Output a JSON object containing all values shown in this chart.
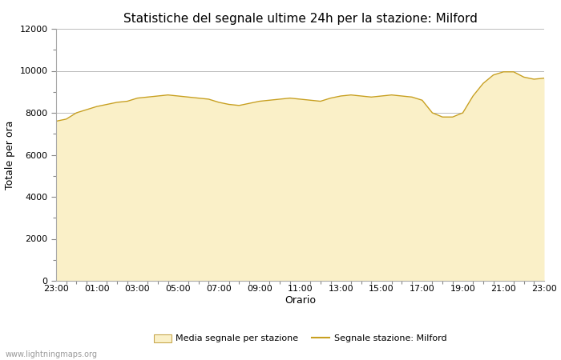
{
  "title": "Statistiche del segnale ultime 24h per la stazione: Milford",
  "xlabel": "Orario",
  "ylabel": "Totale per ora",
  "xlim": [
    0,
    24
  ],
  "ylim": [
    0,
    12000
  ],
  "yticks": [
    0,
    2000,
    4000,
    6000,
    8000,
    10000,
    12000
  ],
  "xtick_labels": [
    "23:00",
    "01:00",
    "03:00",
    "05:00",
    "07:00",
    "09:00",
    "11:00",
    "13:00",
    "15:00",
    "17:00",
    "19:00",
    "21:00",
    "23:00"
  ],
  "fill_color": "#FAF0C8",
  "fill_edge_color": "#C8A850",
  "line_color": "#C8A020",
  "bg_color": "#FFFFFF",
  "grid_color": "#BBBBBB",
  "watermark": "www.lightningmaps.org",
  "legend_fill_label": "Media segnale per stazione",
  "legend_line_label": "Segnale stazione: Milford",
  "hours": [
    0,
    0.5,
    1,
    1.5,
    2,
    2.5,
    3,
    3.5,
    4,
    4.5,
    5,
    5.5,
    6,
    6.5,
    7,
    7.5,
    8,
    8.5,
    9,
    9.5,
    10,
    10.5,
    11,
    11.5,
    12,
    12.5,
    13,
    13.5,
    14,
    14.5,
    15,
    15.5,
    16,
    16.5,
    17,
    17.5,
    18,
    18.5,
    19,
    19.5,
    20,
    20.5,
    21,
    21.5,
    22,
    22.5,
    23,
    23.5,
    24
  ],
  "values": [
    7600,
    7700,
    8000,
    8150,
    8300,
    8400,
    8500,
    8550,
    8700,
    8750,
    8800,
    8850,
    8800,
    8750,
    8700,
    8650,
    8500,
    8400,
    8350,
    8450,
    8550,
    8600,
    8650,
    8700,
    8650,
    8600,
    8550,
    8700,
    8800,
    8850,
    8800,
    8750,
    8800,
    8850,
    8800,
    8750,
    8600,
    8000,
    7800,
    7800,
    8000,
    8800,
    9400,
    9800,
    9950,
    9950,
    9700,
    9600,
    9650
  ],
  "title_fontsize": 11,
  "axis_fontsize": 9,
  "tick_fontsize": 8,
  "watermark_fontsize": 7
}
